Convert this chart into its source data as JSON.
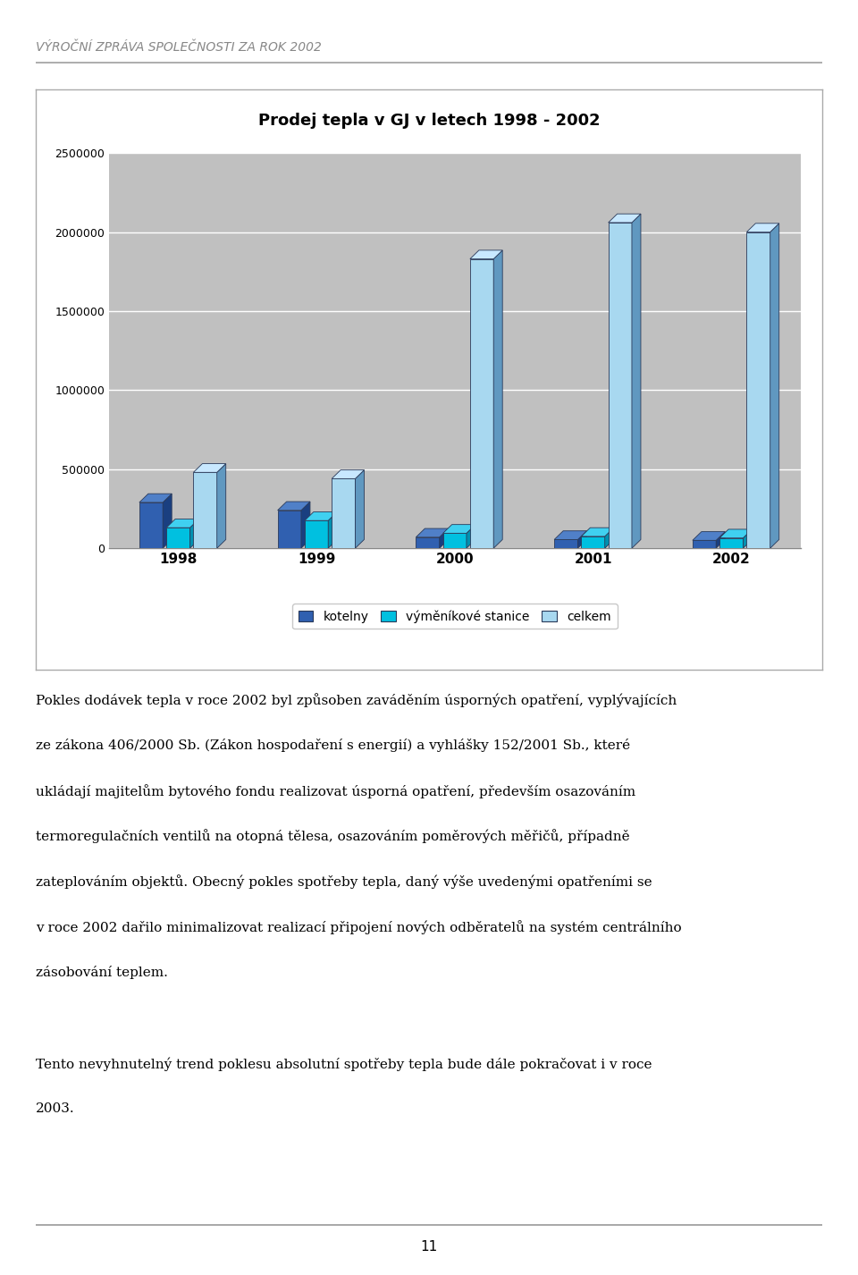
{
  "title": "Prodej tepla v GJ v letech 1998 - 2002",
  "header": "VÝROČNÍ ZPRÁVA SPOLEČNOSTI ZA ROK 2002",
  "years": [
    1998,
    1999,
    2000,
    2001,
    2002
  ],
  "series": {
    "kotelny": [
      290000,
      240000,
      70000,
      55000,
      50000
    ],
    "vymenikove": [
      130000,
      175000,
      95000,
      75000,
      65000
    ],
    "celkem": [
      480000,
      440000,
      1830000,
      2060000,
      2000000
    ]
  },
  "series_labels": [
    "kotelny",
    "výměníkové stanice",
    "celkem"
  ],
  "colors": {
    "kotelny_face": "#3060B0",
    "kotelny_side": "#1A3F80",
    "kotelny_top": "#5080C8",
    "vymenikove_face": "#00C0E0",
    "vymenikove_side": "#0090B0",
    "vymenikove_top": "#40D0F0",
    "celkem_face": "#A8D8F0",
    "celkem_side": "#6098C0",
    "celkem_top": "#C8E8FF"
  },
  "ylim": [
    0,
    2500000
  ],
  "yticks": [
    0,
    500000,
    1000000,
    1500000,
    2000000,
    2500000
  ],
  "chart_bg": "#C0C0C0",
  "page_bg": "#FFFFFF",
  "legend_items": [
    "kotelny",
    "výměníkové stanice",
    "celkem"
  ],
  "legend_colors": [
    "#3060B0",
    "#00C0E0",
    "#A8D8F0"
  ],
  "footer_text": "11",
  "text_body": "Pokles dodávek tepla v roce 2002 byl způsoben zaváděním úsporných opatření, vyplývajících\n\nze zákona 406/2000 Sb. (Zákon hospodaření s energií) a vyhlášky 152/2001 Sb., které\n\nukládají majitelům bytového fondu realizovat úsporná opatření, především osazováním\n\ntermoregulačních ventilů na otopná tělesa, osazováním poměrových měřičů, případně\n\nzateplováním objektů. Obecný pokles spotřeby tepla, daný výše uvedenými opatřeními se\n\nv roce 2002 dařilo minimalizovat realizací připojení nových odběratelů na systém centrálního\n\nzásobování teplem.\n\nTento nevyhnutelný trend poklesu absolutní spotřeby tepla bude dále pokračovat i v roce\n\n2003."
}
